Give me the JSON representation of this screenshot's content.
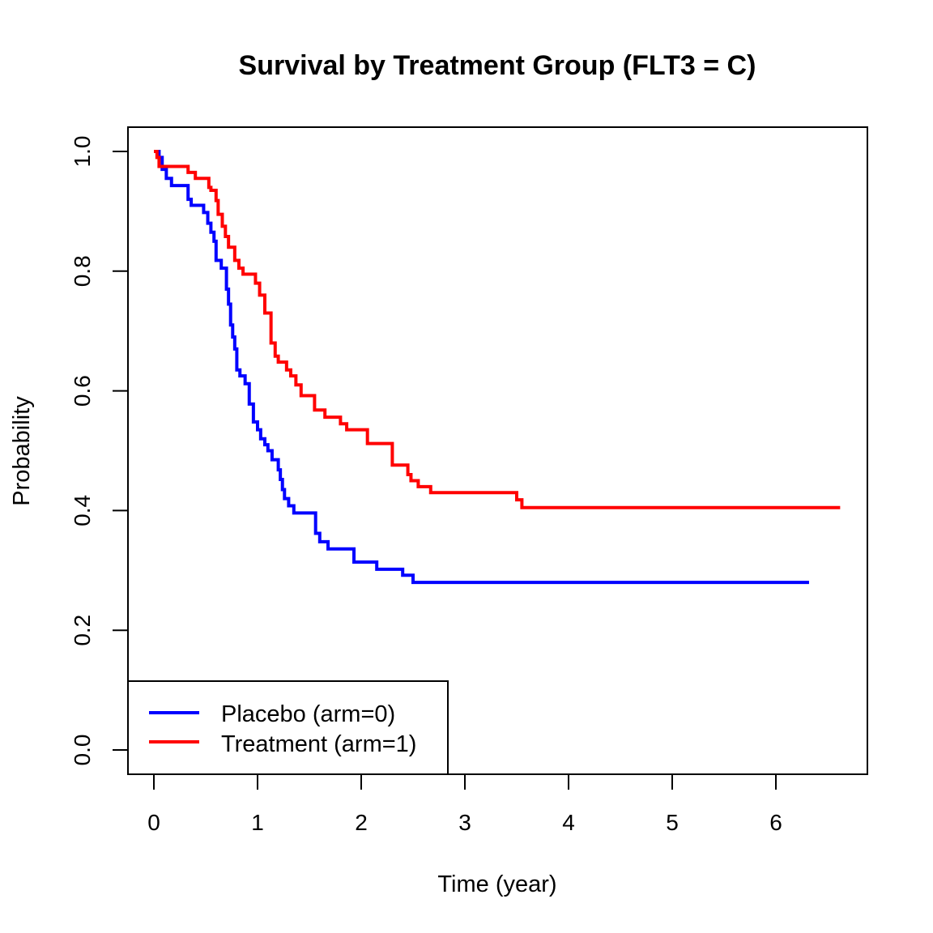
{
  "chart_data": {
    "type": "line",
    "title": "Survival by Treatment Group (FLT3 = C)",
    "xlabel": "Time (year)",
    "ylabel": "Probability",
    "xlim": [
      0,
      7
    ],
    "ylim": [
      0,
      1
    ],
    "x_ticks": [
      0,
      1,
      2,
      3,
      4,
      5,
      6
    ],
    "y_ticks": [
      0.0,
      0.2,
      0.4,
      0.6,
      0.8,
      1.0
    ],
    "x_tick_labels": [
      "0",
      "1",
      "2",
      "3",
      "4",
      "5",
      "6"
    ],
    "y_tick_labels": [
      "0.0",
      "0.2",
      "0.4",
      "0.6",
      "0.8",
      "1.0"
    ],
    "grid": false,
    "legend_position": "bottom-left",
    "series": [
      {
        "name": "Placebo (arm=0)",
        "color": "#0000ff",
        "step": true,
        "x": [
          0,
          0.05,
          0.08,
          0.12,
          0.17,
          0.33,
          0.36,
          0.48,
          0.52,
          0.55,
          0.58,
          0.6,
          0.65,
          0.7,
          0.72,
          0.74,
          0.76,
          0.78,
          0.8,
          0.83,
          0.88,
          0.92,
          0.96,
          1.0,
          1.03,
          1.07,
          1.1,
          1.14,
          1.2,
          1.22,
          1.24,
          1.26,
          1.3,
          1.35,
          1.42,
          1.56,
          1.6,
          1.68,
          1.93,
          2.15,
          2.4,
          2.5,
          6.32
        ],
        "y": [
          1.0,
          0.99,
          0.97,
          0.955,
          0.943,
          0.92,
          0.91,
          0.898,
          0.88,
          0.865,
          0.85,
          0.818,
          0.805,
          0.77,
          0.745,
          0.71,
          0.69,
          0.67,
          0.635,
          0.625,
          0.612,
          0.578,
          0.548,
          0.535,
          0.52,
          0.51,
          0.5,
          0.485,
          0.468,
          0.452,
          0.435,
          0.42,
          0.408,
          0.396,
          0.396,
          0.362,
          0.348,
          0.336,
          0.314,
          0.302,
          0.292,
          0.28,
          0.28
        ]
      },
      {
        "name": "Treatment (arm=1)",
        "color": "#ff0000",
        "step": true,
        "x": [
          0,
          0.03,
          0.05,
          0.08,
          0.33,
          0.4,
          0.53,
          0.55,
          0.6,
          0.62,
          0.66,
          0.69,
          0.72,
          0.78,
          0.82,
          0.86,
          0.98,
          1.02,
          1.07,
          1.13,
          1.17,
          1.2,
          1.28,
          1.32,
          1.37,
          1.42,
          1.55,
          1.65,
          1.8,
          1.86,
          2.06,
          2.3,
          2.45,
          2.48,
          2.55,
          2.67,
          3.5,
          3.55,
          6.62
        ],
        "y": [
          1.0,
          0.99,
          0.975,
          0.975,
          0.965,
          0.955,
          0.94,
          0.935,
          0.918,
          0.895,
          0.875,
          0.858,
          0.84,
          0.818,
          0.805,
          0.795,
          0.78,
          0.76,
          0.73,
          0.68,
          0.658,
          0.648,
          0.635,
          0.625,
          0.61,
          0.592,
          0.568,
          0.556,
          0.545,
          0.535,
          0.512,
          0.476,
          0.46,
          0.45,
          0.44,
          0.43,
          0.418,
          0.405,
          0.405
        ]
      }
    ]
  }
}
